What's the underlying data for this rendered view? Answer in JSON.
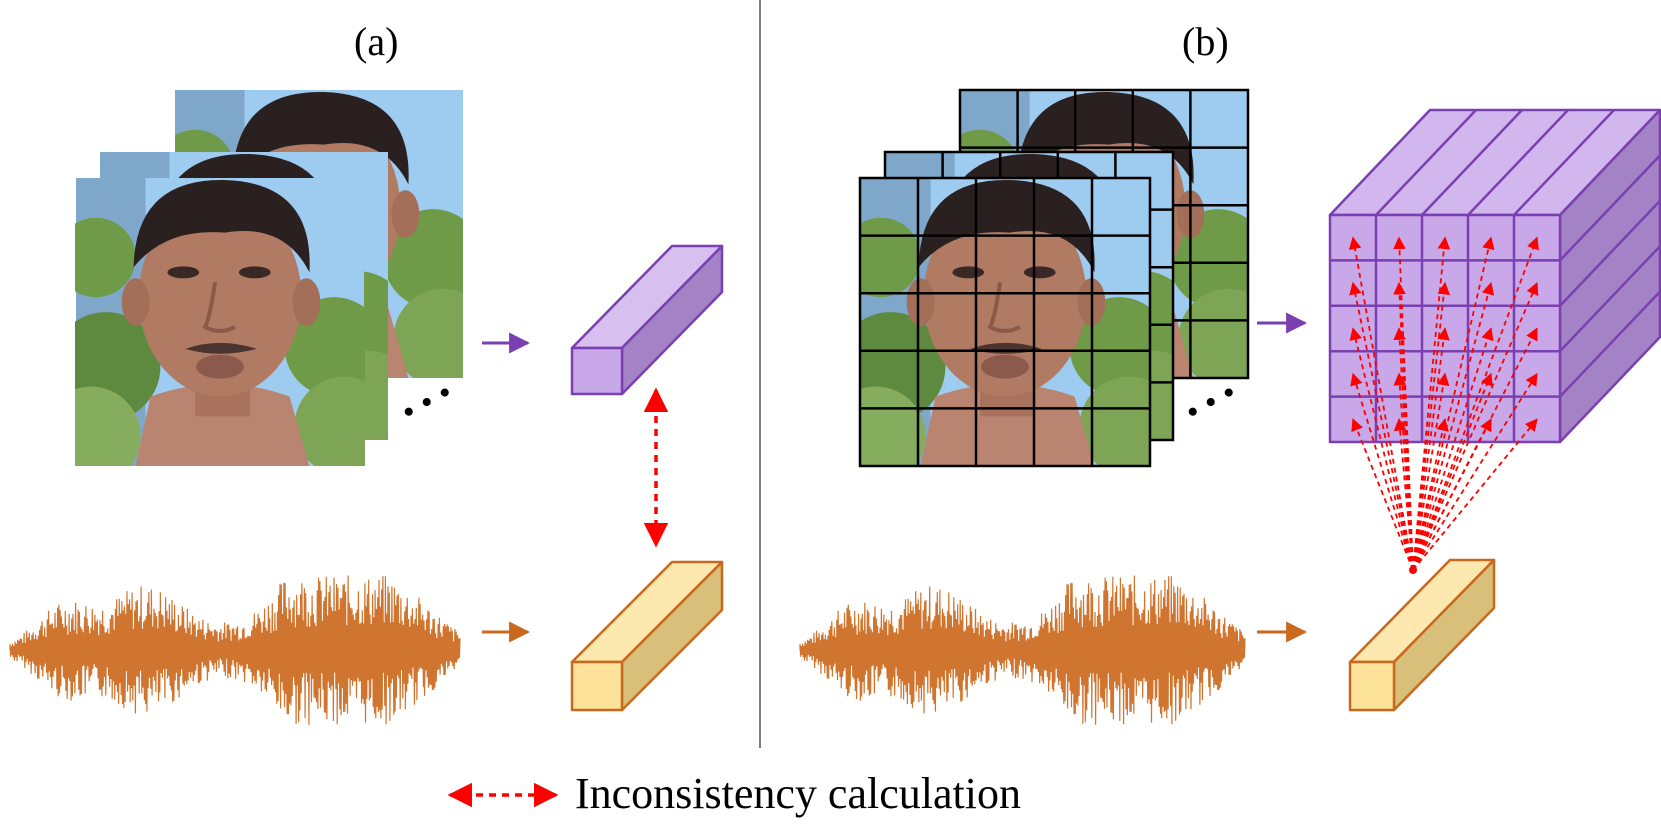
{
  "panels": {
    "a": {
      "label": "(a)"
    },
    "b": {
      "label": "(b)"
    }
  },
  "legend": {
    "text": "Inconsistency calculation",
    "arrow_style": "red dashed double-headed arrow"
  },
  "colors": {
    "visual_feature": "#c8a8e8",
    "visual_feature_dark": "#9a78c4",
    "visual_feature_edge": "#7a3fb0",
    "audio_feature": "#fde39a",
    "audio_feature_dark": "#d9c07a",
    "audio_feature_edge": "#c8691f",
    "waveform": "#d0752f",
    "visual_arrow": "#7a3fb0",
    "audio_arrow": "#c8691f",
    "inconsistency": "#ff0000",
    "sky": "#9ecbf0",
    "foliage": "#6f9a48",
    "skin": "#b07a63",
    "hair": "#2a2020"
  },
  "ellipsis": "• • •",
  "icons": [
    "face-video-frames",
    "audio-waveform",
    "feature-vector",
    "feature-volume"
  ]
}
